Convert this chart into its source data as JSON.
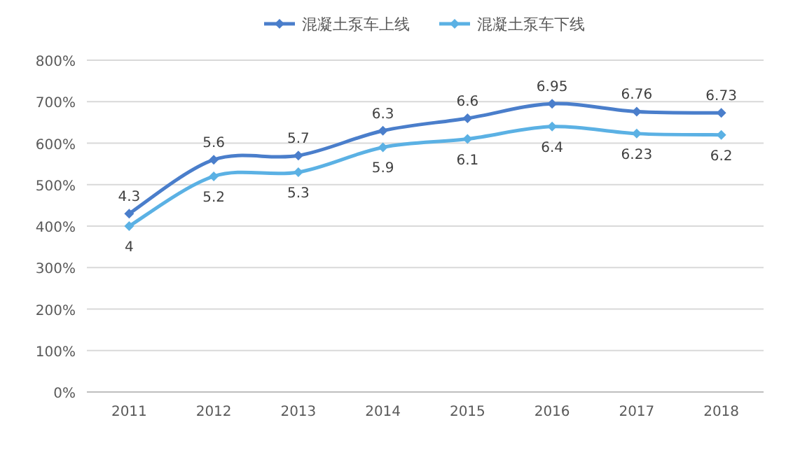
{
  "chart_data": {
    "type": "line",
    "categories": [
      "2011",
      "2012",
      "2013",
      "2014",
      "2015",
      "2016",
      "2017",
      "2018"
    ],
    "series": [
      {
        "name": "混凝土泵车上线",
        "color": "#4a7ecb",
        "values": [
          4.3,
          5.6,
          5.7,
          6.3,
          6.6,
          6.95,
          6.76,
          6.73
        ]
      },
      {
        "name": "混凝土泵车下线",
        "color": "#5bb1e4",
        "values": [
          4,
          5.2,
          5.3,
          5.9,
          6.1,
          6.4,
          6.23,
          6.2
        ]
      }
    ],
    "ylim": [
      0,
      8
    ],
    "yticks": [
      {
        "value": 0,
        "label": "0%"
      },
      {
        "value": 1,
        "label": "100%"
      },
      {
        "value": 2,
        "label": "200%"
      },
      {
        "value": 3,
        "label": "300%"
      },
      {
        "value": 4,
        "label": "400%"
      },
      {
        "value": 5,
        "label": "500%"
      },
      {
        "value": 6,
        "label": "600%"
      },
      {
        "value": 7,
        "label": "700%"
      },
      {
        "value": 8,
        "label": "800%"
      }
    ],
    "grid": "y",
    "legend": "top",
    "marker": "diamond",
    "data_labels": true
  }
}
